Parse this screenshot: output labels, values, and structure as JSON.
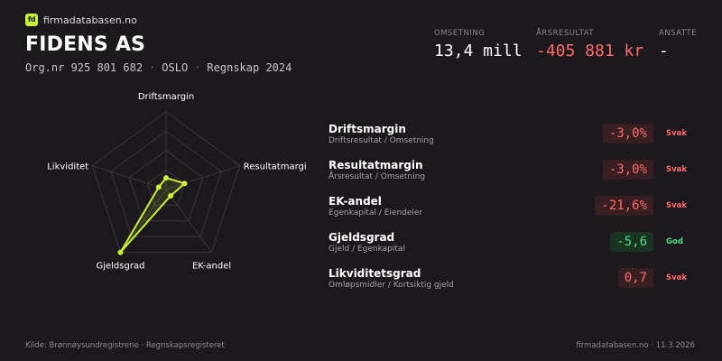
{
  "brand": {
    "logo_text": "fd",
    "name": "firmadatabasen.no"
  },
  "company": {
    "name": "FIDENS AS",
    "org_nr": "Org.nr 925 801 682",
    "city": "OSLO",
    "year": "Regnskap 2024",
    "separator": "·"
  },
  "stats": [
    {
      "label": "OMSETNING",
      "value": "13,4 mill",
      "negative": false
    },
    {
      "label": "ÅRSRESULTAT",
      "value": "-405 881 kr",
      "negative": true
    },
    {
      "label": "ANSATTE",
      "value": "-",
      "negative": false
    }
  ],
  "radar": {
    "axes": [
      "Driftsmargin",
      "Resultatmargin",
      "EK-andel",
      "Gjeldsgrad",
      "Likviditet"
    ],
    "scores": [
      0.15,
      0.25,
      0.1,
      1.0,
      0.1
    ],
    "rings": 4,
    "series_color": "#c8f135"
  },
  "metrics": [
    {
      "name": "Driftsmargin",
      "formula": "Driftsresultat / Omsetning",
      "value": "-3,0%",
      "verdict": "Svak",
      "status": "weak"
    },
    {
      "name": "Resultatmargin",
      "formula": "Årsresultat / Omsetning",
      "value": "-3,0%",
      "verdict": "Svak",
      "status": "weak"
    },
    {
      "name": "EK-andel",
      "formula": "Egenkapital / Eiendeler",
      "value": "-21,6%",
      "verdict": "Svak",
      "status": "weak"
    },
    {
      "name": "Gjeldsgrad",
      "formula": "Gjeld / Egenkapital",
      "value": "-5,6",
      "verdict": "God",
      "status": "good"
    },
    {
      "name": "Likviditetsgrad",
      "formula": "Omløpsmidler / Kortsiktig gjeld",
      "value": "0,7",
      "verdict": "Svak",
      "status": "weak"
    }
  ],
  "footer": {
    "source": "Kilde: Brønnøysundregistrene · Regnskapsregisteret",
    "site": "firmadatabasen.no · 11.3.2026"
  }
}
